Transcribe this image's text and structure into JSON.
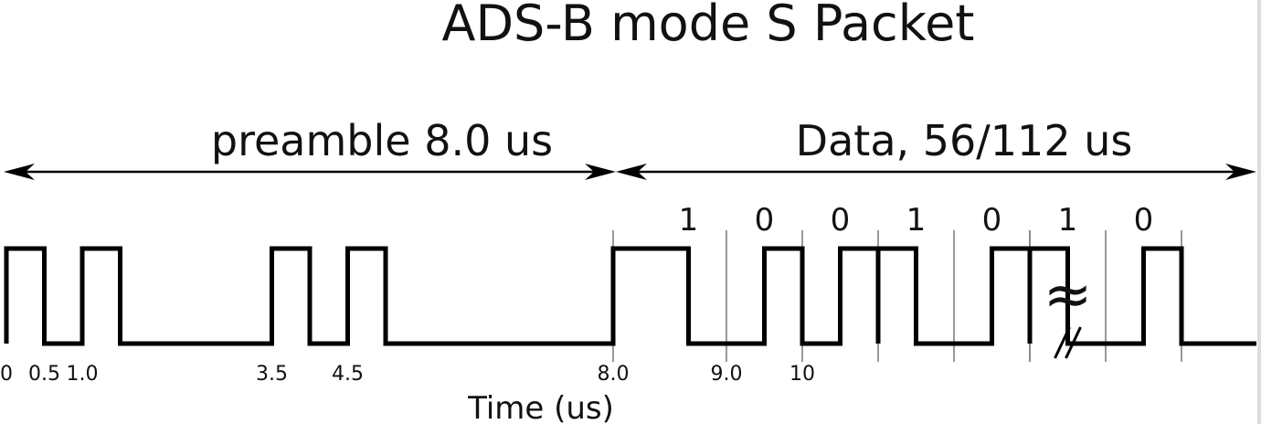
{
  "title": "ADS-B mode S Packet",
  "preamble": {
    "label": "preamble 8.0 us",
    "start_us": 0,
    "end_us": 8.0
  },
  "data_section": {
    "label": "Data, 56/112 us",
    "start_us": 8.0
  },
  "bits": [
    {
      "value": "1",
      "start_us": 8.0
    },
    {
      "value": "0",
      "start_us": 9.0
    },
    {
      "value": "0",
      "start_us": 10.0
    },
    {
      "value": "1",
      "start_us": 11.0
    },
    {
      "value": "0",
      "start_us": 12.0
    },
    {
      "value": "1",
      "start_us": 14.0
    },
    {
      "value": "0",
      "start_us": 15.0
    }
  ],
  "preamble_pulses_us": [
    [
      0,
      0.5
    ],
    [
      1.0,
      1.5
    ],
    [
      3.5,
      4.0
    ],
    [
      4.5,
      5.0
    ]
  ],
  "tick_labels": [
    {
      "text": "0",
      "t": 0
    },
    {
      "text": "0.5",
      "t": 0.5
    },
    {
      "text": "1.0",
      "t": 1.0
    },
    {
      "text": "3.5",
      "t": 3.5
    },
    {
      "text": "4.5",
      "t": 4.5
    },
    {
      "text": "8.0",
      "t": 8.0
    },
    {
      "text": "9.0",
      "t": 9.0
    },
    {
      "text": "10",
      "t": 10.0
    }
  ],
  "bit_period_us": 1.0,
  "break_marker": "≈",
  "break_after_us": 13.0,
  "xlabel": "Time (us)"
}
